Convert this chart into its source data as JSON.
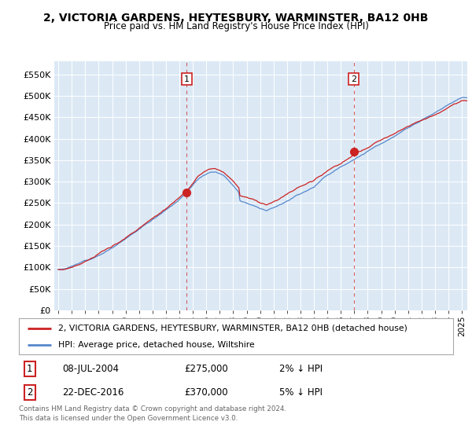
{
  "title": "2, VICTORIA GARDENS, HEYTESBURY, WARMINSTER, BA12 0HB",
  "subtitle": "Price paid vs. HM Land Registry's House Price Index (HPI)",
  "legend_line1": "2, VICTORIA GARDENS, HEYTESBURY, WARMINSTER, BA12 0HB (detached house)",
  "legend_line2": "HPI: Average price, detached house, Wiltshire",
  "sale1_date": "08-JUL-2004",
  "sale1_price": 275000,
  "sale1_label": "1",
  "sale1_pct": "2% ↓ HPI",
  "sale2_date": "22-DEC-2016",
  "sale2_price": 370000,
  "sale2_label": "2",
  "sale2_pct": "5% ↓ HPI",
  "footer": "Contains HM Land Registry data © Crown copyright and database right 2024.\nThis data is licensed under the Open Government Licence v3.0.",
  "hpi_color": "#5588cc",
  "price_color": "#cc2222",
  "vline_color": "#cc2222",
  "background_color": "#dce9f5",
  "plot_bg_color": "#dce9f5",
  "ylim": [
    0,
    580000
  ],
  "yticks": [
    0,
    50000,
    100000,
    150000,
    200000,
    250000,
    300000,
    350000,
    400000,
    450000,
    500000,
    550000
  ],
  "ytick_labels": [
    "£0",
    "£50K",
    "£100K",
    "£150K",
    "£200K",
    "£250K",
    "£300K",
    "£350K",
    "£400K",
    "£450K",
    "£500K",
    "£550K"
  ],
  "x_start_year": 1995,
  "x_end_year": 2025
}
